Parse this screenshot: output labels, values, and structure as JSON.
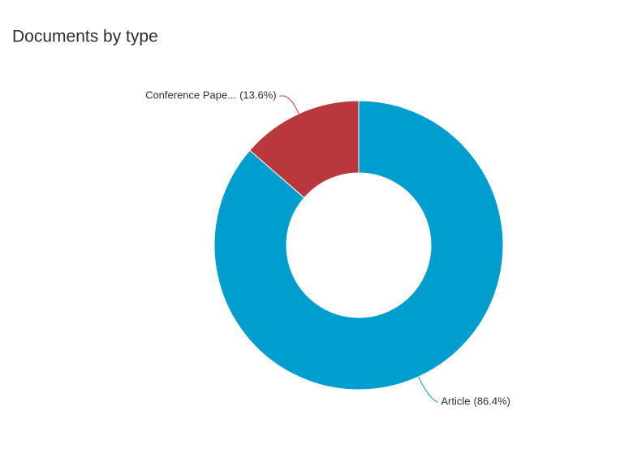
{
  "chart_data": {
    "type": "donut",
    "title": "Documents by type",
    "categories": [
      "Article",
      "Conference Pape..."
    ],
    "values": [
      86.4,
      13.6
    ],
    "value_labels": [
      "(86.4%)",
      "(13.6%)"
    ],
    "colors": [
      "#009ecf",
      "#b8383d"
    ]
  }
}
